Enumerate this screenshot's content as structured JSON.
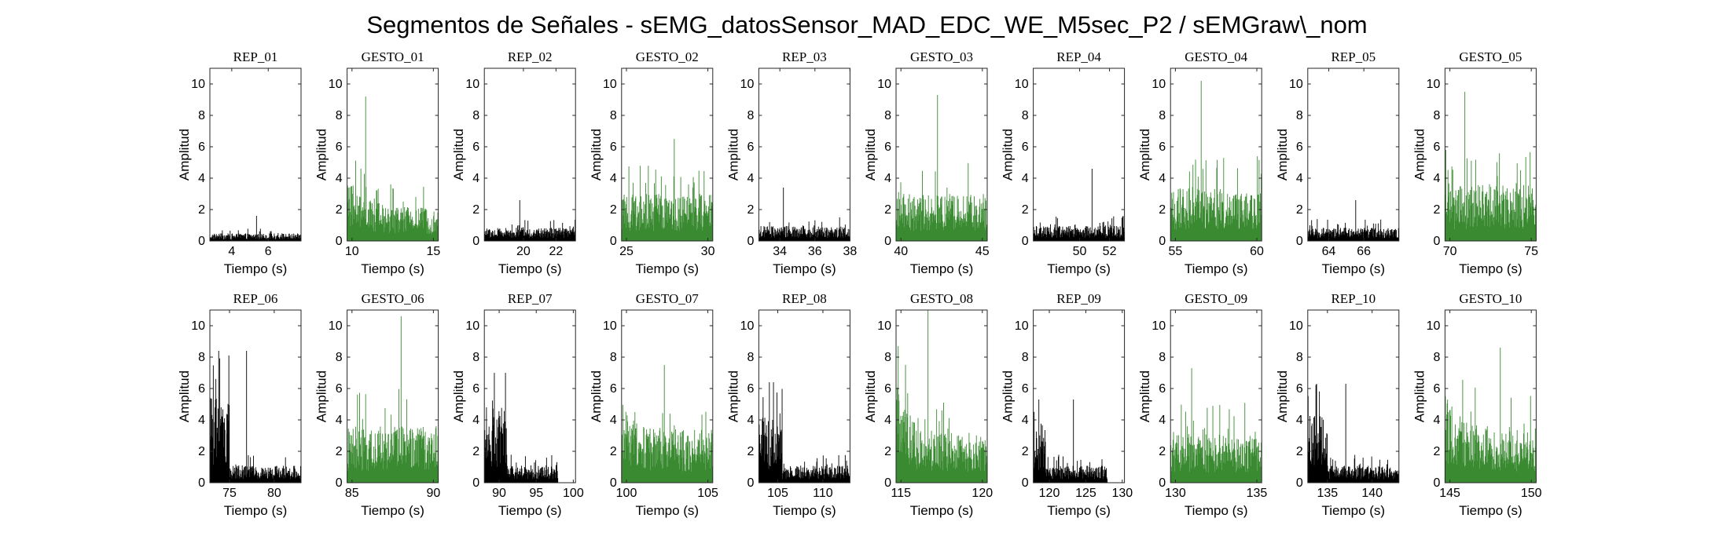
{
  "figure": {
    "title": "Segmentos de Señales - sEMG_datosSensor_MAD_EDC_WE_M5sec_P2 / sEMGraw\\_nom"
  },
  "colors": {
    "rep": "#000000",
    "gesto": "#3a8a32"
  },
  "chart_data": [
    {
      "type": "bar",
      "title": "REP_01",
      "kind": "rep",
      "xlabel": "Tiempo (s)",
      "ylabel": "Amplitud",
      "xlim": [
        2.8,
        7.8
      ],
      "ylim": [
        0,
        11
      ],
      "xticks": [
        4,
        6
      ],
      "yticks": [
        0,
        2,
        4,
        6,
        8,
        10
      ],
      "base": 0.4,
      "peak": 1.6,
      "decay": 0
    },
    {
      "type": "bar",
      "title": "GESTO_01",
      "kind": "gesto",
      "xlabel": "Tiempo (s)",
      "ylabel": "Amplitud",
      "xlim": [
        9.7,
        15.3
      ],
      "ylim": [
        0,
        11
      ],
      "xticks": [
        10,
        15
      ],
      "yticks": [
        0,
        2,
        4,
        6,
        8,
        10
      ],
      "base": 1.8,
      "peak": 9.2,
      "decay": 0.5
    },
    {
      "type": "bar",
      "title": "REP_02",
      "kind": "rep",
      "xlabel": "Tiempo (s)",
      "ylabel": "Amplitud",
      "xlim": [
        17.6,
        23.2
      ],
      "ylim": [
        0,
        11
      ],
      "xticks": [
        20,
        22
      ],
      "yticks": [
        0,
        2,
        4,
        6,
        8,
        10
      ],
      "base": 0.7,
      "peak": 2.6,
      "decay": 0
    },
    {
      "type": "bar",
      "title": "GESTO_02",
      "kind": "gesto",
      "xlabel": "Tiempo (s)",
      "ylabel": "Amplitud",
      "xlim": [
        24.7,
        30.3
      ],
      "ylim": [
        0,
        11
      ],
      "xticks": [
        25,
        30
      ],
      "yticks": [
        0,
        2,
        4,
        6,
        8,
        10
      ],
      "base": 2.5,
      "peak": 6.5,
      "decay": 0
    },
    {
      "type": "bar",
      "title": "REP_03",
      "kind": "rep",
      "xlabel": "Tiempo (s)",
      "ylabel": "Amplitud",
      "xlim": [
        32.8,
        38.0
      ],
      "ylim": [
        0,
        11
      ],
      "xticks": [
        34,
        36,
        38
      ],
      "yticks": [
        0,
        2,
        4,
        6,
        8,
        10
      ],
      "base": 0.8,
      "peak": 3.4,
      "decay": 0
    },
    {
      "type": "bar",
      "title": "GESTO_03",
      "kind": "gesto",
      "xlabel": "Tiempo (s)",
      "ylabel": "Amplitud",
      "xlim": [
        39.7,
        45.3
      ],
      "ylim": [
        0,
        11
      ],
      "xticks": [
        40,
        45
      ],
      "yticks": [
        0,
        2,
        4,
        6,
        8,
        10
      ],
      "base": 2.5,
      "peak": 9.3,
      "decay": 0
    },
    {
      "type": "bar",
      "title": "REP_04",
      "kind": "rep",
      "xlabel": "Tiempo (s)",
      "ylabel": "Amplitud",
      "xlim": [
        46.9,
        53.0
      ],
      "ylim": [
        0,
        11
      ],
      "xticks": [
        50,
        52
      ],
      "yticks": [
        0,
        2,
        4,
        6,
        8,
        10
      ],
      "base": 0.8,
      "peak": 4.6,
      "decay": 0
    },
    {
      "type": "bar",
      "title": "GESTO_04",
      "kind": "gesto",
      "xlabel": "Tiempo (s)",
      "ylabel": "Amplitud",
      "xlim": [
        54.7,
        60.3
      ],
      "ylim": [
        0,
        11
      ],
      "xticks": [
        55,
        60
      ],
      "yticks": [
        0,
        2,
        4,
        6,
        8,
        10
      ],
      "base": 2.8,
      "peak": 10.2,
      "decay": 0
    },
    {
      "type": "bar",
      "title": "REP_05",
      "kind": "rep",
      "xlabel": "Tiempo (s)",
      "ylabel": "Amplitud",
      "xlim": [
        62.8,
        68.0
      ],
      "ylim": [
        0,
        11
      ],
      "xticks": [
        64,
        66
      ],
      "yticks": [
        0,
        2,
        4,
        6,
        8,
        10
      ],
      "base": 0.7,
      "peak": 2.6,
      "decay": 0
    },
    {
      "type": "bar",
      "title": "GESTO_05",
      "kind": "gesto",
      "xlabel": "Tiempo (s)",
      "ylabel": "Amplitud",
      "xlim": [
        69.7,
        75.3
      ],
      "ylim": [
        0,
        11
      ],
      "xticks": [
        70,
        75
      ],
      "yticks": [
        0,
        2,
        4,
        6,
        8,
        10
      ],
      "base": 3.0,
      "peak": 9.5,
      "decay": 0
    },
    {
      "type": "bar",
      "title": "REP_06",
      "kind": "rep",
      "xlabel": "Tiempo (s)",
      "ylabel": "Amplitud",
      "xlim": [
        72.8,
        83.0
      ],
      "ylim": [
        0,
        11
      ],
      "xticks": [
        75,
        80
      ],
      "yticks": [
        0,
        2,
        4,
        6,
        8,
        10
      ],
      "base": 0.9,
      "peak": 8.4,
      "decay": 0,
      "burst_end": 75.0,
      "burst_level": 4.5
    },
    {
      "type": "bar",
      "title": "GESTO_06",
      "kind": "gesto",
      "xlabel": "Tiempo (s)",
      "ylabel": "Amplitud",
      "xlim": [
        84.7,
        90.3
      ],
      "ylim": [
        0,
        11
      ],
      "xticks": [
        85,
        90
      ],
      "yticks": [
        0,
        2,
        4,
        6,
        8,
        10
      ],
      "base": 3.0,
      "peak": 10.6,
      "decay": 0
    },
    {
      "type": "bar",
      "title": "REP_07",
      "kind": "rep",
      "xlabel": "Tiempo (s)",
      "ylabel": "Amplitud",
      "xlim": [
        88.0,
        100.3
      ],
      "ylim": [
        0,
        11
      ],
      "xticks": [
        90,
        95,
        100
      ],
      "yticks": [
        0,
        2,
        4,
        6,
        8,
        10
      ],
      "base": 0.9,
      "peak": 7.0,
      "decay": 0,
      "burst_end": 91.0,
      "burst_level": 4.0,
      "data_end": 98.0
    },
    {
      "type": "bar",
      "title": "GESTO_07",
      "kind": "gesto",
      "xlabel": "Tiempo (s)",
      "ylabel": "Amplitud",
      "xlim": [
        99.7,
        105.3
      ],
      "ylim": [
        0,
        11
      ],
      "xticks": [
        100,
        105
      ],
      "yticks": [
        0,
        2,
        4,
        6,
        8,
        10
      ],
      "base": 2.8,
      "peak": 7.5,
      "decay": 0.3
    },
    {
      "type": "bar",
      "title": "REP_08",
      "kind": "rep",
      "xlabel": "Tiempo (s)",
      "ylabel": "Amplitud",
      "xlim": [
        102.9,
        113.0
      ],
      "ylim": [
        0,
        11
      ],
      "xticks": [
        105,
        110
      ],
      "yticks": [
        0,
        2,
        4,
        6,
        8,
        10
      ],
      "base": 0.9,
      "peak": 6.4,
      "decay": 0,
      "burst_end": 105.5,
      "burst_level": 3.5
    },
    {
      "type": "bar",
      "title": "GESTO_08",
      "kind": "gesto",
      "xlabel": "Tiempo (s)",
      "ylabel": "Amplitud",
      "xlim": [
        114.7,
        120.3
      ],
      "ylim": [
        0,
        11
      ],
      "xticks": [
        115,
        120
      ],
      "yticks": [
        0,
        2,
        4,
        6,
        8,
        10
      ],
      "base": 2.5,
      "peak": 11.0,
      "decay": 0.6
    },
    {
      "type": "bar",
      "title": "REP_09",
      "kind": "rep",
      "xlabel": "Tiempo (s)",
      "ylabel": "Amplitud",
      "xlim": [
        117.8,
        130.3
      ],
      "ylim": [
        0,
        11
      ],
      "xticks": [
        120,
        125,
        130
      ],
      "yticks": [
        0,
        2,
        4,
        6,
        8,
        10
      ],
      "base": 0.9,
      "peak": 5.3,
      "decay": 0,
      "burst_end": 119.5,
      "burst_level": 2.8,
      "data_end": 128.0
    },
    {
      "type": "bar",
      "title": "GESTO_09",
      "kind": "gesto",
      "xlabel": "Tiempo (s)",
      "ylabel": "Amplitud",
      "xlim": [
        129.7,
        135.3
      ],
      "ylim": [
        0,
        11
      ],
      "xticks": [
        130,
        135
      ],
      "yticks": [
        0,
        2,
        4,
        6,
        8,
        10
      ],
      "base": 2.6,
      "peak": 7.3,
      "decay": 0
    },
    {
      "type": "bar",
      "title": "REP_10",
      "kind": "rep",
      "xlabel": "Tiempo (s)",
      "ylabel": "Amplitud",
      "xlim": [
        132.8,
        143.0
      ],
      "ylim": [
        0,
        11
      ],
      "xticks": [
        135,
        140
      ],
      "yticks": [
        0,
        2,
        4,
        6,
        8,
        10
      ],
      "base": 0.9,
      "peak": 6.3,
      "decay": 0,
      "burst_end": 135.0,
      "burst_level": 3.8
    },
    {
      "type": "bar",
      "title": "GESTO_10",
      "kind": "gesto",
      "xlabel": "Tiempo (s)",
      "ylabel": "Amplitud",
      "xlim": [
        144.7,
        150.3
      ],
      "ylim": [
        0,
        11
      ],
      "xticks": [
        145,
        150
      ],
      "yticks": [
        0,
        2,
        4,
        6,
        8,
        10
      ],
      "base": 2.8,
      "peak": 8.6,
      "decay": 0.4
    }
  ]
}
